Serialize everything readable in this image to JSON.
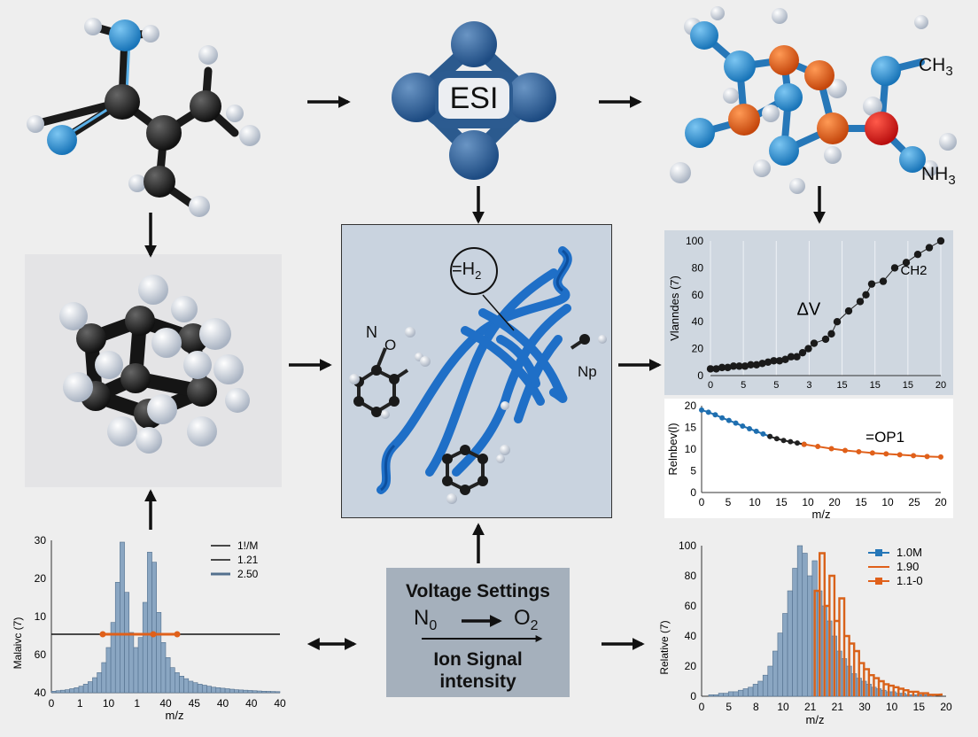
{
  "esi": {
    "label": "ESI"
  },
  "molecule_right": {
    "label_ch3": "CH",
    "label_ch3_sub": "3",
    "label_nh3": "NH",
    "label_nh3_sub": "3"
  },
  "protein": {
    "h2_label": "=H",
    "h2_sub": "2",
    "n_label": "N",
    "o_label": "O",
    "np_label": "Np"
  },
  "voltage_box": {
    "title": "Voltage Settings",
    "left_species": "N",
    "left_sub": "0",
    "right_species": "O",
    "right_sub": "2",
    "caption_line1": "Ion Signal",
    "caption_line2": "intensity"
  },
  "chart_data": [
    {
      "id": "top-right-scatter",
      "type": "scatter",
      "ylabel": "Vlanndes (7)",
      "x_tick_labels": [
        "0",
        "5",
        "5",
        "3",
        "15",
        "15",
        "15",
        "20"
      ],
      "y_tick_labels": [
        "0",
        "20",
        "40",
        "60",
        "80",
        "100"
      ],
      "ylim": [
        0,
        100
      ],
      "annotations": [
        "ΔV",
        "CH2"
      ],
      "grid": true,
      "series": [
        {
          "values_x": [
            0,
            0.5,
            1,
            1.5,
            2,
            2.5,
            3,
            3.5,
            4,
            4.5,
            5,
            5.5,
            6,
            6.5,
            7,
            7.5,
            8,
            8.5,
            9,
            10,
            10.5,
            11,
            12,
            13,
            13.5,
            14,
            15,
            16,
            17,
            18,
            19,
            20
          ],
          "values_y": [
            5,
            5,
            6,
            6,
            7,
            7,
            7,
            8,
            8,
            9,
            10,
            11,
            11,
            12,
            14,
            14,
            17,
            20,
            24,
            27,
            31,
            40,
            48,
            55,
            60,
            68,
            70,
            80,
            84,
            90,
            95,
            100
          ]
        }
      ]
    },
    {
      "id": "middle-right-line",
      "type": "line",
      "xlabel": "m/z",
      "ylabel": "Relnbev(l)",
      "x_tick_labels": [
        "0",
        "5",
        "10",
        "15",
        "10",
        "20",
        "15",
        "10",
        "25",
        "20"
      ],
      "y_tick_labels": [
        "0",
        "5",
        "10",
        "15",
        "20"
      ],
      "ylim": [
        0,
        20
      ],
      "annotations": [
        "=OP1"
      ],
      "series": [
        {
          "color": "#1f6fb0",
          "x": [
            0,
            1,
            2,
            3,
            4,
            5,
            6,
            7,
            8,
            9,
            10
          ],
          "y": [
            19,
            18.5,
            17.9,
            17.2,
            16.6,
            16,
            15.3,
            14.7,
            14.1,
            13.5,
            12.9
          ]
        },
        {
          "color": "#222222",
          "x": [
            10,
            11,
            12,
            13,
            14,
            15
          ],
          "y": [
            12.9,
            12.4,
            12,
            11.7,
            11.4,
            11.1
          ]
        },
        {
          "color": "#e0601a",
          "x": [
            15,
            17,
            19,
            21,
            23,
            25,
            27,
            29,
            31,
            33,
            35
          ],
          "y": [
            11.1,
            10.6,
            10.1,
            9.7,
            9.4,
            9.1,
            8.9,
            8.7,
            8.5,
            8.3,
            8.2
          ]
        }
      ]
    },
    {
      "id": "bottom-left-histogram",
      "type": "bar",
      "xlabel": "m/z",
      "ylabel": "Malaivc (7)",
      "x_tick_labels": [
        "0",
        "1",
        "10",
        "1",
        "40",
        "45",
        "40",
        "40",
        "40"
      ],
      "y_tick_labels": [
        "40",
        "60",
        "10",
        "20",
        "30"
      ],
      "legend": [
        "1!/M",
        "1.21",
        "2.50"
      ],
      "legend_position": "top-right",
      "reference_line_label": "40",
      "values": [
        0.3,
        0.4,
        0.5,
        0.6,
        0.8,
        1,
        1.3,
        1.7,
        2.2,
        3,
        4,
        6,
        9,
        14,
        22,
        30,
        20,
        12,
        9,
        11,
        18,
        28,
        26,
        16,
        10,
        7,
        5,
        4,
        3.3,
        2.8,
        2.3,
        2,
        1.7,
        1.5,
        1.3,
        1.1,
        1,
        0.9,
        0.8,
        0.7,
        0.6,
        0.55,
        0.5,
        0.45,
        0.4,
        0.35,
        0.3,
        0.28,
        0.25,
        0.22
      ]
    },
    {
      "id": "bottom-right-histogram",
      "type": "bar",
      "xlabel": "m/z",
      "ylabel": "Relative (7)",
      "x_tick_labels": [
        "0",
        "5",
        "8",
        "10",
        "21",
        "21",
        "30",
        "10",
        "15",
        "20"
      ],
      "y_tick_labels": [
        "0",
        "20",
        "40",
        "60",
        "80",
        "100"
      ],
      "ylim": [
        0,
        100
      ],
      "legend": [
        "1.0M",
        "1.90",
        "1.1-0"
      ],
      "legend_position": "top-right",
      "series": [
        {
          "name": "1.0M",
          "color": "#6f8fb0",
          "values": [
            1,
            1,
            2,
            2,
            3,
            3,
            4,
            5,
            6,
            8,
            10,
            14,
            20,
            30,
            42,
            55,
            70,
            85,
            100,
            95,
            80,
            90,
            70,
            60,
            50,
            40,
            30,
            25,
            20,
            15,
            12,
            10,
            8,
            6,
            5,
            4,
            3,
            3,
            2,
            2,
            1,
            1,
            1,
            1,
            1,
            1
          ]
        },
        {
          "name": "1.1-0",
          "color": "#d9621a",
          "values": [
            0,
            0,
            0,
            0,
            0,
            0,
            0,
            0,
            0,
            0,
            0,
            0,
            0,
            0,
            0,
            0,
            0,
            0,
            0,
            0,
            0,
            70,
            95,
            60,
            80,
            50,
            65,
            40,
            35,
            30,
            22,
            18,
            14,
            12,
            10,
            8,
            7,
            6,
            5,
            4,
            3,
            3,
            2,
            2,
            1,
            1
          ]
        }
      ]
    }
  ]
}
